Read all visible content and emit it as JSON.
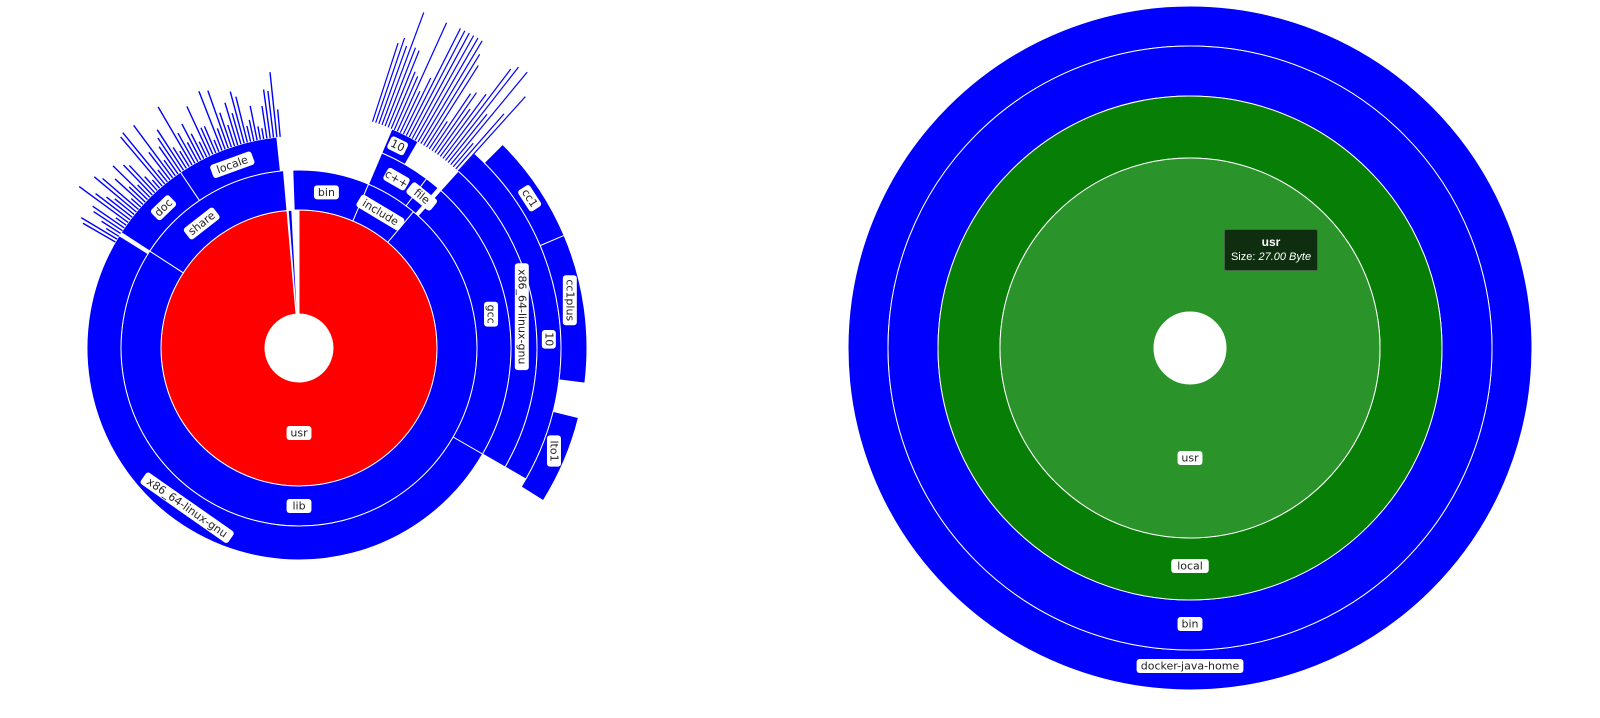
{
  "chart_data": [
    {
      "type": "sunburst",
      "title": "",
      "colors": {
        "highlight": "#ff0000",
        "default": "#0000ff"
      },
      "nodes": [
        {
          "label": "usr",
          "depth": 1,
          "start_deg": 0,
          "end_deg": 355,
          "color": "#ff0000",
          "label_deg": 180
        },
        {
          "label": "",
          "depth": 1,
          "start_deg": 355.5,
          "end_deg": 357,
          "color": "#0000ff",
          "label_deg": null
        },
        {
          "label": "lib",
          "depth": 2,
          "start_deg": 40,
          "end_deg": 303,
          "color": "#0000ff",
          "label_deg": 180
        },
        {
          "label": "share",
          "depth": 2,
          "start_deg": 303,
          "end_deg": 355,
          "color": "#0000ff",
          "label_deg": 322
        },
        {
          "label": "bin",
          "depth": 2,
          "start_deg": 358,
          "end_deg": 23,
          "color": "#0000ff",
          "label_deg": 10
        },
        {
          "label": "include",
          "depth": 2,
          "start_deg": 23,
          "end_deg": 40,
          "color": "#0000ff",
          "label_deg": 31
        },
        {
          "label": "x86_64-linux-gnu",
          "depth": 3,
          "start_deg": 120,
          "end_deg": 302,
          "color": "#0000ff",
          "label_deg": 215
        },
        {
          "label": "gcc",
          "depth": 3,
          "start_deg": 42,
          "end_deg": 120,
          "color": "#0000ff",
          "label_deg": 80
        },
        {
          "label": "doc",
          "depth": 3,
          "start_deg": 303,
          "end_deg": 326,
          "color": "#0000ff",
          "label_deg": 316
        },
        {
          "label": "locale",
          "depth": 3,
          "start_deg": 326,
          "end_deg": 354,
          "color": "#0000ff",
          "label_deg": 340
        },
        {
          "label": "c++",
          "depth": 3,
          "start_deg": 23,
          "end_deg": 37,
          "color": "#0000ff",
          "label_deg": 30
        },
        {
          "label": "file",
          "depth": 3,
          "start_deg": 37,
          "end_deg": 41,
          "color": "#0000ff",
          "label_deg": 39
        },
        {
          "label": "x86_64-linux-gnu",
          "depth": 4,
          "start_deg": 42,
          "end_deg": 120,
          "color": "#0000ff",
          "label_deg": 82
        },
        {
          "label": "10",
          "depth": 4,
          "start_deg": 23,
          "end_deg": 30,
          "color": "#0000ff",
          "label_deg": 26
        },
        {
          "label": "10",
          "depth": 5,
          "start_deg": 42,
          "end_deg": 120,
          "color": "#0000ff",
          "label_deg": 88
        },
        {
          "label": "cc1",
          "depth": 6,
          "start_deg": 45,
          "end_deg": 67,
          "color": "#0000ff",
          "label_deg": 57
        },
        {
          "label": "cc1plus",
          "depth": 6,
          "start_deg": 67,
          "end_deg": 97,
          "color": "#0000ff",
          "label_deg": 80
        },
        {
          "label": "lto1",
          "depth": 6,
          "start_deg": 104,
          "end_deg": 122,
          "color": "#0000ff",
          "label_deg": 112
        }
      ]
    },
    {
      "type": "sunburst",
      "title": "",
      "colors": {
        "selected": "#2a942a",
        "ancestor": "#077f07",
        "default": "#0000ff"
      },
      "nodes": [
        {
          "label": "usr",
          "depth": 1,
          "color": "#2a942a"
        },
        {
          "label": "local",
          "depth": 2,
          "color": "#077f07"
        },
        {
          "label": "bin",
          "depth": 3,
          "color": "#0000ff"
        },
        {
          "label": "docker-java-home",
          "depth": 4,
          "color": "#0000ff"
        }
      ],
      "tooltip": {
        "title": "usr",
        "size_label": "Size:",
        "size_value": "27.00 Byte"
      }
    }
  ]
}
